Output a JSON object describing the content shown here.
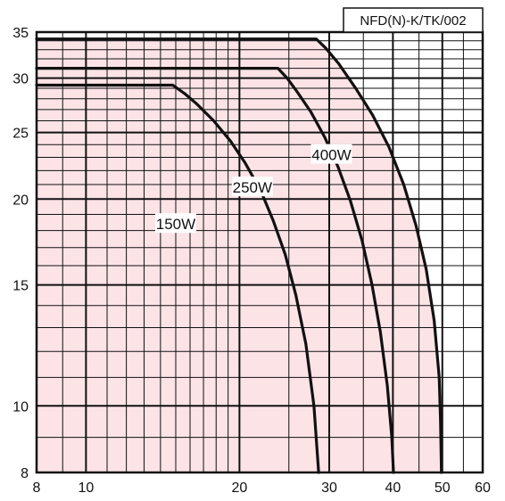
{
  "chart_data": {
    "type": "line",
    "title": "",
    "xlabel": "",
    "ylabel": "",
    "code_label": "NFD(N)-K/TK/002",
    "x_scale": "log",
    "y_scale": "log",
    "xlim": [
      8,
      60
    ],
    "ylim": [
      8,
      35
    ],
    "x_ticks": [
      8,
      9,
      10,
      11,
      12,
      13,
      14,
      15,
      16,
      17,
      18,
      19,
      20,
      25,
      30,
      35,
      40,
      45,
      50,
      55,
      60
    ],
    "x_tick_labels": [
      {
        "value": 8,
        "label": "8"
      },
      {
        "value": 10,
        "label": "10"
      },
      {
        "value": 20,
        "label": "20"
      },
      {
        "value": 30,
        "label": "30"
      },
      {
        "value": 40,
        "label": "40"
      },
      {
        "value": 50,
        "label": "50"
      },
      {
        "value": 60,
        "label": "60"
      }
    ],
    "x_major_ticks": [
      10,
      20,
      30,
      40,
      50
    ],
    "y_ticks": [
      8,
      9,
      10,
      11,
      12,
      13,
      14,
      15,
      16,
      17,
      18,
      19,
      20,
      21,
      22,
      23,
      24,
      25,
      26,
      27,
      28,
      29,
      30,
      31,
      32,
      33,
      34,
      35
    ],
    "y_tick_labels": [
      {
        "value": 8,
        "label": "8"
      },
      {
        "value": 10,
        "label": "10"
      },
      {
        "value": 15,
        "label": "15"
      },
      {
        "value": 20,
        "label": "20"
      },
      {
        "value": 25,
        "label": "25"
      },
      {
        "value": 30,
        "label": "30"
      },
      {
        "value": 35,
        "label": "35"
      }
    ],
    "y_major_ticks": [
      10,
      15,
      20,
      25,
      30
    ],
    "grid": true,
    "fill_color": "#fbe3e6",
    "line_color": "#111111",
    "series": [
      {
        "name": "150W",
        "x": [
          8,
          14.8,
          15.6,
          16.5,
          17.8,
          19.2,
          20.5,
          22.0,
          23.3,
          24.6,
          25.8,
          27.0,
          28.0,
          28.6
        ],
        "y": [
          29.3,
          29.3,
          28.5,
          27.5,
          26.0,
          24.3,
          22.6,
          20.6,
          18.6,
          16.6,
          14.5,
          12.3,
          10.0,
          8.0
        ]
      },
      {
        "name": "250W",
        "x": [
          8,
          23.8,
          24.8,
          26.0,
          27.6,
          29.4,
          31.2,
          33.0,
          34.8,
          36.4,
          37.8,
          39.0,
          39.8,
          40.1
        ],
        "y": [
          31.0,
          31.0,
          30.0,
          28.6,
          26.8,
          24.6,
          22.3,
          19.9,
          17.4,
          15.0,
          12.8,
          10.7,
          9.0,
          8.0
        ]
      },
      {
        "name": "400W",
        "x": [
          8,
          28.3,
          29.5,
          31.3,
          33.8,
          36.5,
          39.3,
          42.0,
          44.4,
          46.5,
          48.2,
          49.3,
          49.6,
          49.8
        ],
        "y": [
          34.2,
          34.2,
          33.2,
          31.5,
          29.0,
          26.5,
          23.8,
          21.0,
          18.3,
          15.8,
          13.3,
          11.0,
          9.5,
          8.0
        ]
      }
    ],
    "series_labels": [
      {
        "text": "150W",
        "series": "150W"
      },
      {
        "text": "250W",
        "series": "250W"
      },
      {
        "text": "400W",
        "series": "400W"
      }
    ]
  }
}
